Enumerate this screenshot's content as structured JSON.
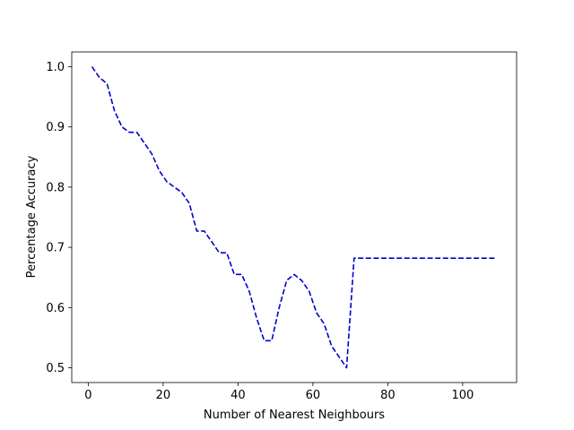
{
  "chart_data": {
    "type": "line",
    "title": "",
    "xlabel": "Number of Nearest Neighbours",
    "ylabel": "Percentage Accuracy",
    "xlim": [
      -4.4,
      114.4
    ],
    "ylim": [
      0.4755,
      1.0245
    ],
    "xticks": [
      0,
      20,
      40,
      60,
      80,
      100
    ],
    "xtick_labels": [
      "0",
      "20",
      "40",
      "60",
      "80",
      "100"
    ],
    "yticks": [
      0.5,
      0.6,
      0.7,
      0.8,
      0.9,
      1.0
    ],
    "ytick_labels": [
      "0.5",
      "0.6",
      "0.7",
      "0.8",
      "0.9",
      "1.0"
    ],
    "grid": false,
    "series": [
      {
        "name": "accuracy",
        "color": "#0000cc",
        "linestyle": "dashed",
        "x": [
          1,
          3,
          5,
          7,
          9,
          11,
          13,
          15,
          17,
          19,
          21,
          23,
          25,
          27,
          29,
          31,
          33,
          35,
          37,
          39,
          41,
          43,
          45,
          47,
          49,
          51,
          53,
          55,
          57,
          59,
          61,
          63,
          65,
          67,
          69,
          71,
          73,
          75,
          77,
          79,
          81,
          83,
          85,
          87,
          89,
          91,
          93,
          95,
          97,
          99,
          101,
          103,
          105,
          107,
          109
        ],
        "values": [
          1.0,
          0.982,
          0.972,
          0.927,
          0.9,
          0.891,
          0.891,
          0.873,
          0.855,
          0.827,
          0.809,
          0.8,
          0.791,
          0.773,
          0.727,
          0.727,
          0.709,
          0.691,
          0.691,
          0.655,
          0.655,
          0.627,
          0.582,
          0.545,
          0.545,
          0.6,
          0.645,
          0.655,
          0.645,
          0.627,
          0.591,
          0.573,
          0.536,
          0.518,
          0.5,
          0.682,
          0.682,
          0.682,
          0.682,
          0.682,
          0.682,
          0.682,
          0.682,
          0.682,
          0.682,
          0.682,
          0.682,
          0.682,
          0.682,
          0.682,
          0.682,
          0.682,
          0.682,
          0.682,
          0.682
        ]
      }
    ]
  }
}
